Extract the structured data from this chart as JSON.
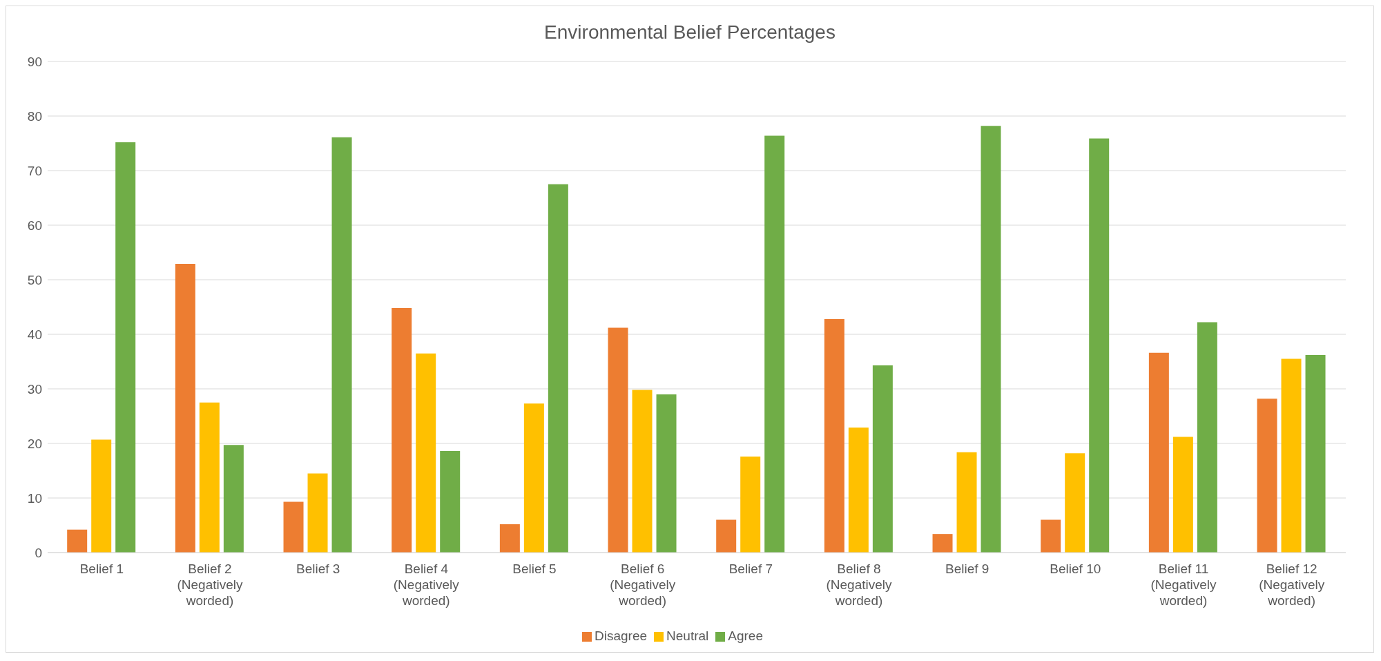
{
  "chart_data": {
    "type": "bar",
    "title": "Environmental Belief Percentages",
    "categories": [
      "Belief 1",
      "Belief 2 (Negatively worded)",
      "Belief 3",
      "Belief 4 (Negatively worded)",
      "Belief 5",
      "Belief 6 (Negatively worded)",
      "Belief 7",
      "Belief 8 (Negatively worded)",
      "Belief 9",
      "Belief 10",
      "Belief 11 (Negatively worded)",
      "Belief 12 (Negatively worded)"
    ],
    "series": [
      {
        "name": "Disagree",
        "color": "#ed7d31",
        "values": [
          4.2,
          52.9,
          9.3,
          44.8,
          5.2,
          41.2,
          6.0,
          42.8,
          3.4,
          6.0,
          36.6,
          28.2
        ]
      },
      {
        "name": "Neutral",
        "color": "#ffc000",
        "values": [
          20.7,
          27.5,
          14.5,
          36.5,
          27.3,
          29.8,
          17.6,
          22.9,
          18.4,
          18.2,
          21.2,
          35.5
        ]
      },
      {
        "name": "Agree",
        "color": "#70ad47",
        "values": [
          75.2,
          19.7,
          76.1,
          18.6,
          67.5,
          29.0,
          76.4,
          34.3,
          78.2,
          75.9,
          42.2,
          36.2
        ]
      }
    ],
    "ylim": [
      0,
      90
    ],
    "yticks": [
      0,
      10,
      20,
      30,
      40,
      50,
      60,
      70,
      80,
      90
    ],
    "grid": "y",
    "legend": "bottom"
  }
}
